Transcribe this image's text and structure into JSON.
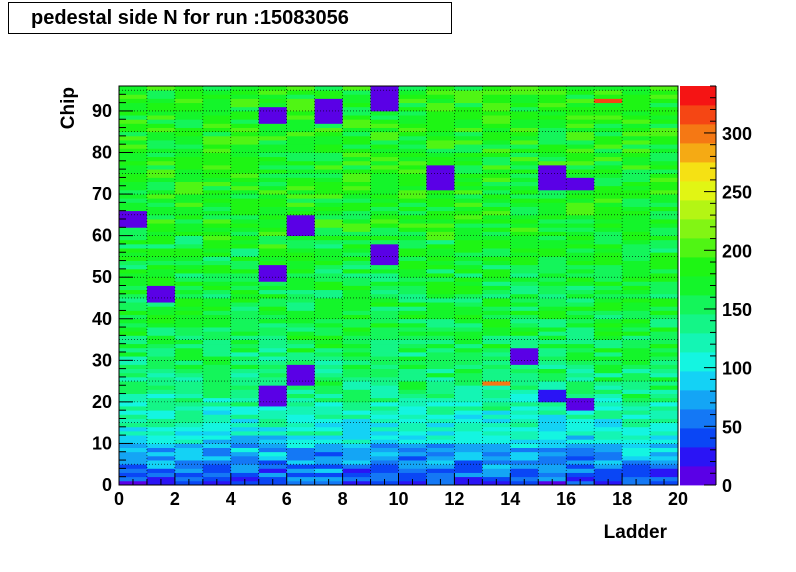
{
  "chart_data": {
    "type": "heatmap",
    "title": "pedestal side N for run :15083056",
    "xlabel": "Ladder",
    "ylabel": "Chip",
    "xlim": [
      0,
      20
    ],
    "ylim": [
      0,
      96
    ],
    "zlim": [
      0,
      340
    ],
    "x_bins": 20,
    "y_bins": 96,
    "x_ticks": [
      "0",
      "2",
      "4",
      "6",
      "8",
      "10",
      "12",
      "14",
      "16",
      "18",
      "20"
    ],
    "y_ticks": [
      "0",
      "10",
      "20",
      "30",
      "40",
      "50",
      "60",
      "70",
      "80",
      "90"
    ],
    "z_ticks": [
      "0",
      "50",
      "100",
      "150",
      "200",
      "250",
      "300"
    ],
    "grid": true,
    "colorbar": "right",
    "palette": [
      "#5a00e6",
      "#2a14f5",
      "#0a46f5",
      "#1478f5",
      "#14a5f5",
      "#14d2f5",
      "#14f5e1",
      "#14f5b4",
      "#14f587",
      "#14f55a",
      "#14f52a",
      "#1ef514",
      "#50f514",
      "#82f514",
      "#b4f514",
      "#e1f514",
      "#f5e114",
      "#f5aa14",
      "#f57814",
      "#f54614",
      "#f51414"
    ],
    "values_by_band": [
      {
        "chips": "0-10",
        "approx_value": 60
      },
      {
        "chips": "10-20",
        "approx_value": 110
      },
      {
        "chips": "20-35",
        "approx_value": 150
      },
      {
        "chips": "35-60",
        "approx_value": 165
      },
      {
        "chips": "60-96",
        "approx_value": 180
      }
    ],
    "low_value_patches": [
      {
        "ladder": 9,
        "chips": [
          90,
          96
        ],
        "value": 10
      },
      {
        "ladder": 9,
        "chips": [
          53,
          58
        ],
        "value": 10
      },
      {
        "ladder": 11,
        "chips": [
          71,
          77
        ],
        "value": 10
      },
      {
        "ladder": 15,
        "chips": [
          71,
          77
        ],
        "value": 10
      },
      {
        "ladder": 16,
        "chips": [
          71,
          74
        ],
        "value": 10
      },
      {
        "ladder": 6,
        "chips": [
          60,
          65
        ],
        "value": 10
      },
      {
        "ladder": 5,
        "chips": [
          49,
          53
        ],
        "value": 10
      },
      {
        "ladder": 7,
        "chips": [
          87,
          93
        ],
        "value": 10
      },
      {
        "ladder": 5,
        "chips": [
          87,
          91
        ],
        "value": 10
      },
      {
        "ladder": 0,
        "chips": [
          62,
          66
        ],
        "value": 10
      },
      {
        "ladder": 1,
        "chips": [
          44,
          48
        ],
        "value": 10
      },
      {
        "ladder": 6,
        "chips": [
          24,
          29
        ],
        "value": 10
      },
      {
        "ladder": 5,
        "chips": [
          19,
          24
        ],
        "value": 10
      },
      {
        "ladder": 16,
        "chips": [
          18,
          21
        ],
        "value": 10
      },
      {
        "ladder": 14,
        "chips": [
          29,
          33
        ],
        "value": 10
      },
      {
        "ladder": 15,
        "chips": [
          20,
          23
        ],
        "value": 20
      }
    ],
    "high_value_cells": [
      {
        "ladder": 17,
        "chip": 92,
        "value": 320
      },
      {
        "ladder": 13,
        "chip": 24,
        "value": 300
      }
    ]
  }
}
